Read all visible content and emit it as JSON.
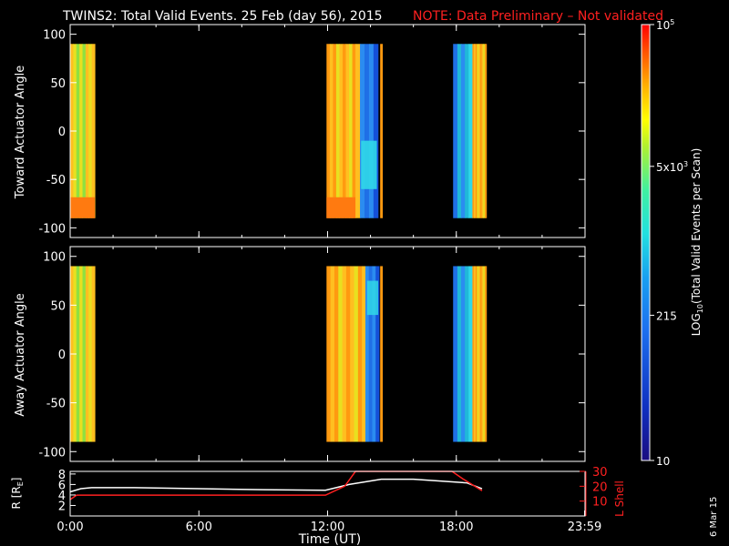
{
  "header": {
    "title": "TWINS2: Total Valid Events. 25 Feb (day  56), 2015",
    "note": "NOTE: Data Preliminary – Not validated"
  },
  "side_date": "6 Mar 15",
  "colors": {
    "background": "#000000",
    "axes": "#ffffff",
    "note": "#ff2020",
    "lshell": "#ff2020",
    "radius": "#ffffff"
  },
  "chart_data": [
    {
      "type": "heatmap",
      "panel": "top",
      "ylabel": "Toward Actuator Angle",
      "ylim": [
        -110,
        110
      ],
      "yticks": [
        100,
        50,
        0,
        -50,
        -100
      ],
      "xlim": [
        0,
        24
      ],
      "x_unit": "hours UT",
      "y_extent_of_data": [
        -90,
        90
      ],
      "data_blocks": [
        {
          "t_start": 0.0,
          "t_end": 1.15,
          "level": "yellow-orange, green streaks near 0:20-0:50, orange at bottom"
        },
        {
          "t_start": 11.95,
          "t_end": 13.3,
          "level": "orange/yellow, dense orange near bottom"
        },
        {
          "t_start": 13.3,
          "t_end": 14.35,
          "level": "blue/cyan with cyan band near -20 to -60"
        },
        {
          "t_start": 14.45,
          "t_end": 14.55,
          "level": "orange thin column"
        },
        {
          "t_start": 17.85,
          "t_end": 18.05,
          "level": "blue"
        },
        {
          "t_start": 18.05,
          "t_end": 18.75,
          "level": "teal to cyan gradient"
        },
        {
          "t_start": 18.75,
          "t_end": 19.4,
          "level": "orange/yellow"
        }
      ]
    },
    {
      "type": "heatmap",
      "panel": "middle",
      "ylabel": "Away Actuator Angle",
      "ylim": [
        -110,
        110
      ],
      "yticks": [
        100,
        50,
        0,
        -50,
        -100
      ],
      "xlim": [
        0,
        24
      ],
      "x_unit": "hours UT",
      "y_extent_of_data": [
        -90,
        90
      ],
      "data_blocks": [
        {
          "t_start": 0.0,
          "t_end": 1.15,
          "level": "yellow-orange with green streaks"
        },
        {
          "t_start": 11.95,
          "t_end": 13.6,
          "level": "orange/yellow"
        },
        {
          "t_start": 13.6,
          "t_end": 14.4,
          "level": "blue, cyan near top"
        },
        {
          "t_start": 14.45,
          "t_end": 14.55,
          "level": "orange thin column"
        },
        {
          "t_start": 17.85,
          "t_end": 18.05,
          "level": "blue"
        },
        {
          "t_start": 18.05,
          "t_end": 18.75,
          "level": "blue with green"
        },
        {
          "t_start": 18.75,
          "t_end": 19.4,
          "level": "orange/yellow"
        }
      ]
    },
    {
      "type": "line",
      "panel": "bottom",
      "ylabel": "R [R",
      "ylabel_sub": "E",
      "ylabel_close": "]",
      "ylim": [
        0,
        8.5
      ],
      "yticks": [
        2,
        4,
        6,
        8
      ],
      "y2label": "L Shell",
      "y2lim": [
        0,
        30
      ],
      "y2ticks": [
        10,
        20,
        30
      ],
      "xlabel": "Time (UT)",
      "xticks": [
        "0:00",
        "6:00",
        "12:00",
        "18:00",
        "23:59"
      ],
      "xtick_values": [
        0,
        6,
        12,
        18,
        23.98
      ],
      "series": [
        {
          "axis": "left",
          "color": "#ffffff",
          "x": [
            0,
            0.5,
            1,
            3,
            6,
            9,
            11.9,
            13,
            14.5,
            16,
            17.5,
            18.5,
            19.2
          ],
          "y": [
            4.6,
            5.2,
            5.4,
            5.4,
            5.2,
            5.0,
            4.9,
            6.0,
            7.0,
            7.0,
            6.6,
            6.3,
            5.2
          ]
        },
        {
          "axis": "right",
          "color": "#ff2020",
          "x": [
            0,
            0.3,
            1,
            11.9,
            12.8,
            13.3,
            14.6,
            17.8,
            18.3,
            19.2
          ],
          "y": [
            11,
            14,
            14,
            14,
            20,
            30,
            30,
            30,
            25,
            17
          ]
        }
      ]
    }
  ],
  "colorbar": {
    "label_main": "LOG",
    "label_sub": "10",
    "label_rest": "(Total Valid Events per Scan)",
    "ticks": [
      {
        "value": 100000,
        "text": "10",
        "sup": "5"
      },
      {
        "value": 5000,
        "text": "5x10",
        "sup": "3"
      },
      {
        "value": 215,
        "text": "215",
        "sup": ""
      },
      {
        "value": 10,
        "text": "10",
        "sup": ""
      }
    ],
    "range": [
      10,
      100000
    ],
    "scale": "log"
  }
}
